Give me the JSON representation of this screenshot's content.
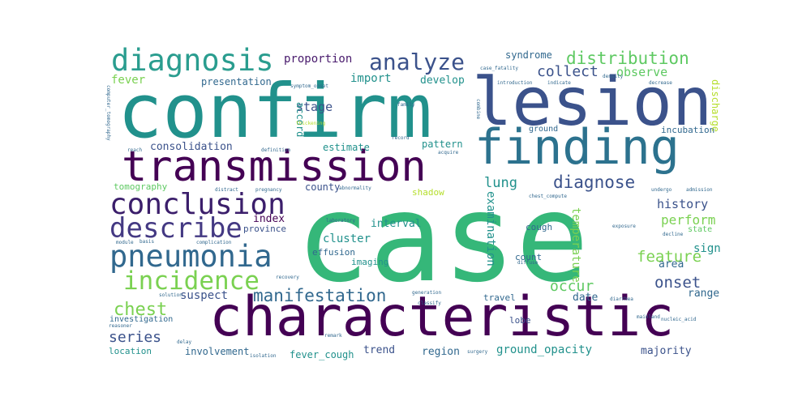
{
  "palette": [
    "#440154",
    "#3b528b",
    "#21918c",
    "#5ec962",
    "#b5de2b",
    "#fde725"
  ],
  "words": [
    {
      "text": "case",
      "color": "#35b779"
    },
    {
      "text": "confirm",
      "color": "#21918c"
    },
    {
      "text": "characteristic",
      "color": "#440154"
    },
    {
      "text": "lesion",
      "color": "#3b528b"
    },
    {
      "text": "finding",
      "color": "#2c728e"
    },
    {
      "text": "transmission",
      "color": "#440154"
    },
    {
      "text": "diagnosis",
      "color": "#2a9d8f"
    },
    {
      "text": "pneumonia",
      "color": "#31688e"
    },
    {
      "text": "conclusion",
      "color": "#3b1e6b"
    },
    {
      "text": "describe",
      "color": "#443983"
    },
    {
      "text": "incidence",
      "color": "#7ad151"
    },
    {
      "text": "analyze",
      "color": "#3b528b"
    },
    {
      "text": "distribution",
      "color": "#5ec962"
    },
    {
      "text": "manifestation",
      "color": "#31688e"
    },
    {
      "text": "chest",
      "color": "#7ad151"
    },
    {
      "text": "diagnose",
      "color": "#3b528b"
    },
    {
      "text": "proportion",
      "color": "#481a6c"
    },
    {
      "text": "collect",
      "color": "#3b528b"
    },
    {
      "text": "observe",
      "color": "#5ec962"
    },
    {
      "text": "fever",
      "color": "#7ad151"
    },
    {
      "text": "presentation",
      "color": "#31688e"
    },
    {
      "text": "import",
      "color": "#21918c"
    },
    {
      "text": "develop",
      "color": "#21918c"
    },
    {
      "text": "syndrome",
      "color": "#31688e"
    },
    {
      "text": "stage",
      "color": "#3b528b"
    },
    {
      "text": "consolidation",
      "color": "#3b528b"
    },
    {
      "text": "estimate",
      "color": "#21918c"
    },
    {
      "text": "pattern",
      "color": "#21918c"
    },
    {
      "text": "incubation",
      "color": "#31688e"
    },
    {
      "text": "lung",
      "color": "#21918c"
    },
    {
      "text": "history",
      "color": "#3b528b"
    },
    {
      "text": "perform",
      "color": "#7ad151"
    },
    {
      "text": "feature",
      "color": "#7ad151"
    },
    {
      "text": "onset",
      "color": "#3b528b"
    },
    {
      "text": "area",
      "color": "#31688e"
    },
    {
      "text": "sign",
      "color": "#21918c"
    },
    {
      "text": "range",
      "color": "#31688e"
    },
    {
      "text": "tomography",
      "color": "#5ec962"
    },
    {
      "text": "county",
      "color": "#3b528b"
    },
    {
      "text": "shadow",
      "color": "#b5de2b"
    },
    {
      "text": "index",
      "color": "#440154"
    },
    {
      "text": "province",
      "color": "#3b528b"
    },
    {
      "text": "interval",
      "color": "#21918c"
    },
    {
      "text": "cluster",
      "color": "#21918c"
    },
    {
      "text": "effusion",
      "color": "#31688e"
    },
    {
      "text": "imaging",
      "color": "#21918c"
    },
    {
      "text": "cough",
      "color": "#31688e"
    },
    {
      "text": "count",
      "color": "#31688e"
    },
    {
      "text": "examination",
      "color": "#21918c"
    },
    {
      "text": "temperature",
      "color": "#7ad151"
    },
    {
      "text": "occur",
      "color": "#5ec962"
    },
    {
      "text": "date",
      "color": "#31688e"
    },
    {
      "text": "suspect",
      "color": "#3b528b"
    },
    {
      "text": "travel",
      "color": "#31688e"
    },
    {
      "text": "lobe",
      "color": "#3b528b"
    },
    {
      "text": "series",
      "color": "#3b528b"
    },
    {
      "text": "involvement",
      "color": "#31688e"
    },
    {
      "text": "fever_cough",
      "color": "#21918c"
    },
    {
      "text": "trend",
      "color": "#3b528b"
    },
    {
      "text": "region",
      "color": "#31688e"
    },
    {
      "text": "ground_opacity",
      "color": "#21918c"
    },
    {
      "text": "majority",
      "color": "#3b528b"
    },
    {
      "text": "location",
      "color": "#21918c"
    },
    {
      "text": "investigation",
      "color": "#31688e"
    },
    {
      "text": "discharge",
      "color": "#b5de2b"
    },
    {
      "text": "accord",
      "color": "#21918c"
    },
    {
      "text": "ground",
      "color": "#31688e"
    },
    {
      "text": "state",
      "color": "#5ec962"
    },
    {
      "text": "decline",
      "color": "#31688e"
    },
    {
      "text": "exposure",
      "color": "#31688e"
    },
    {
      "text": "mainland",
      "color": "#31688e"
    },
    {
      "text": "complication",
      "color": "#31688e"
    },
    {
      "text": "laboratory",
      "color": "#31688e"
    },
    {
      "text": "introduction",
      "color": "#31688e"
    },
    {
      "text": "indicate",
      "color": "#31688e"
    },
    {
      "text": "density",
      "color": "#31688e"
    },
    {
      "text": "decrease",
      "color": "#31688e"
    },
    {
      "text": "case_fatality",
      "color": "#31688e"
    },
    {
      "text": "symptom_onset",
      "color": "#31688e"
    },
    {
      "text": "computer_tomography",
      "color": "#31688e"
    },
    {
      "text": "definition",
      "color": "#31688e"
    },
    {
      "text": "reach",
      "color": "#31688e"
    },
    {
      "text": "record",
      "color": "#31688e"
    },
    {
      "text": "acquire",
      "color": "#31688e"
    },
    {
      "text": "abnormality",
      "color": "#31688e"
    },
    {
      "text": "distract",
      "color": "#31688e"
    },
    {
      "text": "pregnancy",
      "color": "#31688e"
    },
    {
      "text": "chest_compute",
      "color": "#31688e"
    },
    {
      "text": "undergo",
      "color": "#31688e"
    },
    {
      "text": "admission",
      "color": "#31688e"
    },
    {
      "text": "module",
      "color": "#31688e"
    },
    {
      "text": "basis",
      "color": "#31688e"
    },
    {
      "text": "thickening",
      "color": "#b5de2b"
    },
    {
      "text": "family",
      "color": "#31688e"
    },
    {
      "text": "combine",
      "color": "#31688e"
    },
    {
      "text": "recovery",
      "color": "#31688e"
    },
    {
      "text": "generation",
      "color": "#31688e"
    },
    {
      "text": "classify",
      "color": "#31688e"
    },
    {
      "text": "diffuse",
      "color": "#31688e"
    },
    {
      "text": "diarrhea",
      "color": "#31688e"
    },
    {
      "text": "surgery",
      "color": "#31688e"
    },
    {
      "text": "nucleic_acid",
      "color": "#31688e"
    },
    {
      "text": "delay",
      "color": "#31688e"
    },
    {
      "text": "isolation",
      "color": "#31688e"
    },
    {
      "text": "solution",
      "color": "#31688e"
    },
    {
      "text": "reasoner",
      "color": "#31688e"
    },
    {
      "text": "remark",
      "color": "#31688e"
    }
  ]
}
